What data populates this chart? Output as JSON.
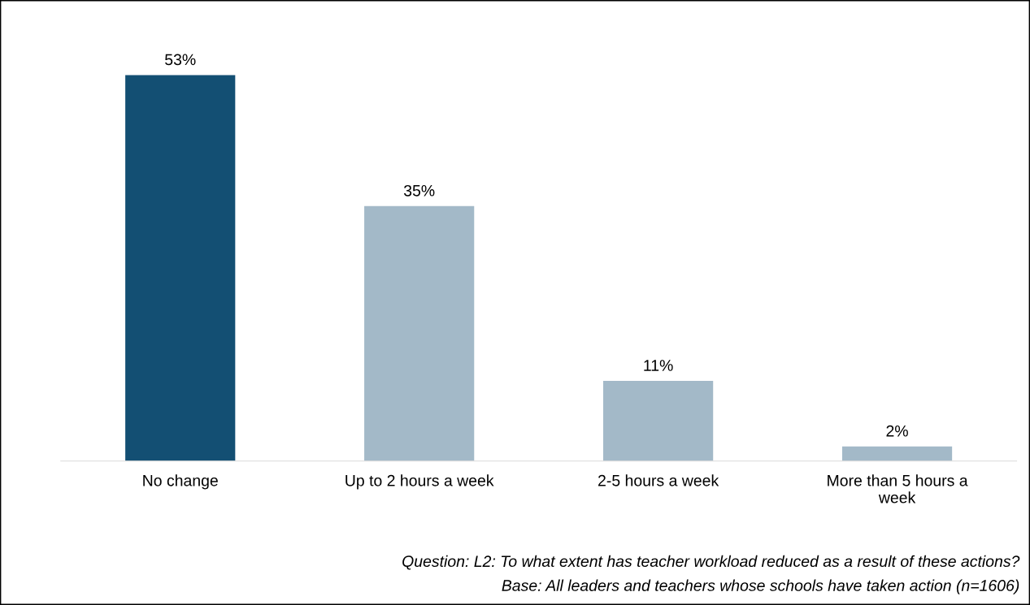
{
  "chart_data": {
    "type": "bar",
    "categories": [
      "No change",
      "Up to 2 hours a week",
      "2-5 hours a week",
      "More than 5 hours a\nweek"
    ],
    "values": [
      53,
      35,
      11,
      2
    ],
    "colors": [
      "#134f73",
      "#a3b9c8",
      "#a3b9c8",
      "#a3b9c8"
    ],
    "data_labels": true,
    "value_labels": [
      "53%",
      "35%",
      "11%",
      "2%"
    ],
    "annotations": [
      "Question: L2: To what extent has teacher workload reduced as a result of these actions?",
      "Base: All leaders and teachers whose schools have taken action (n=1606)"
    ]
  }
}
